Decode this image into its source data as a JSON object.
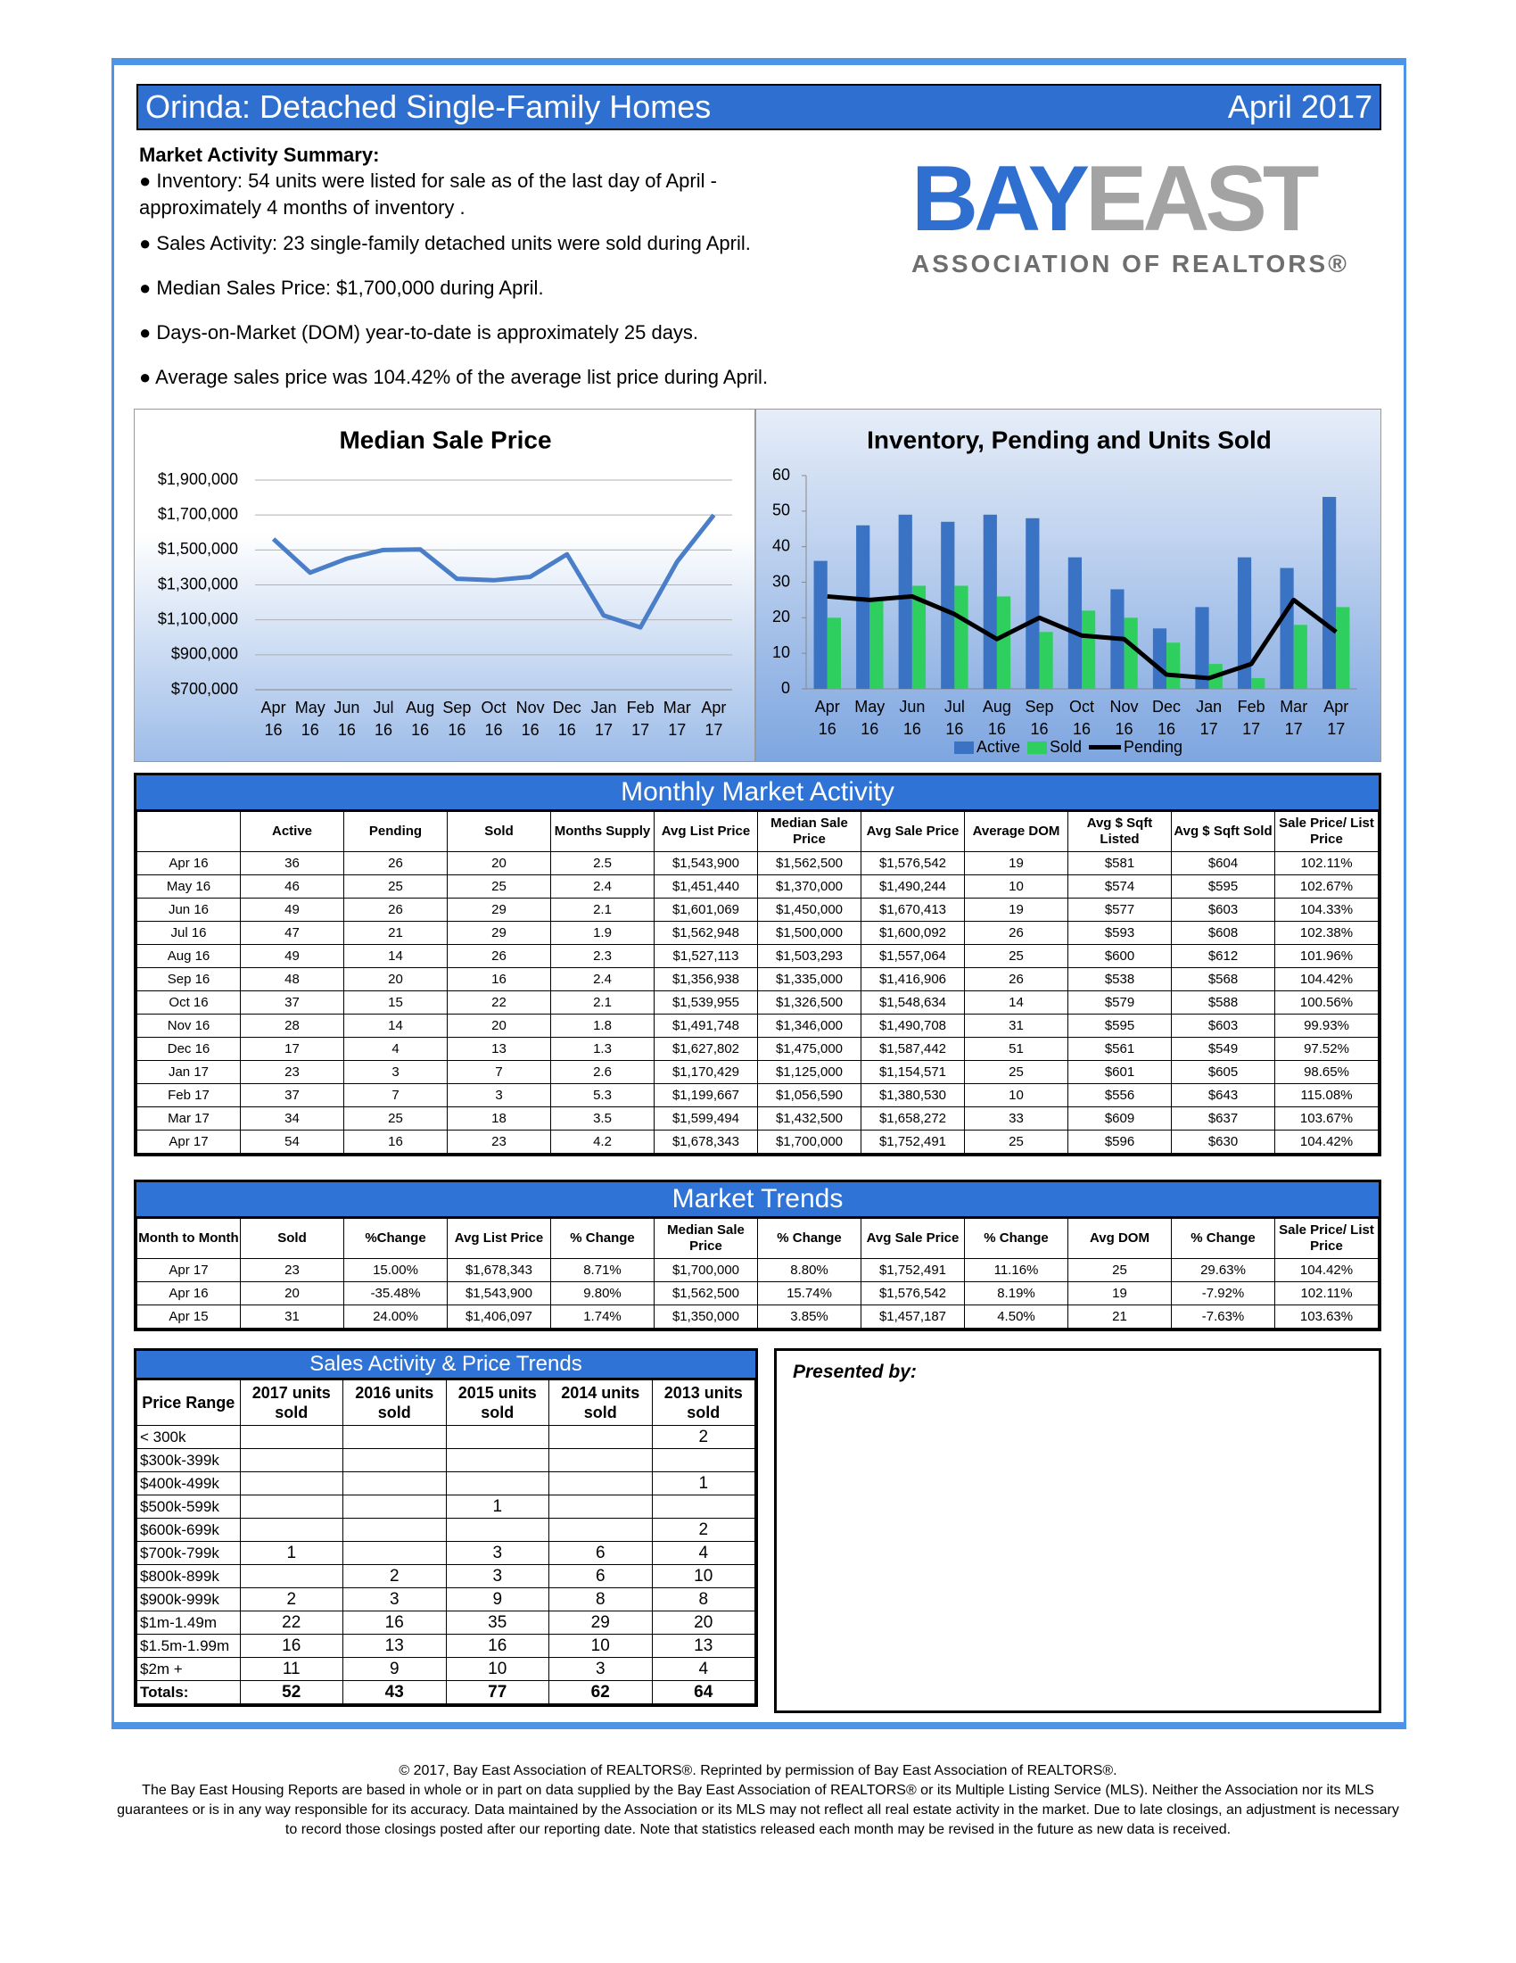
{
  "header": {
    "title": "Orinda: Detached Single-Family Homes",
    "date": "April 2017"
  },
  "summary": {
    "heading": "Market Activity Summary:",
    "items": [
      "● Inventory: 54 units were listed for sale as of the last day of April - approximately 4 months of inventory .",
      "● Sales Activity: 23 single-family detached units were sold during April.",
      "● Median Sales Price: $1,700,000 during April.",
      "● Days-on-Market (DOM) year-to-date is approximately 25 days.",
      "● Average sales price was 104.42% of the average list price during April."
    ]
  },
  "logo": {
    "words": [
      "BAY",
      "EAST"
    ],
    "subtitle": "ASSOCIATION OF REALTORS®"
  },
  "chart_data": [
    {
      "type": "line",
      "title": "Median Sale Price",
      "categories": [
        "Apr 16",
        "May 16",
        "Jun 16",
        "Jul 16",
        "Aug 16",
        "Sep 16",
        "Oct 16",
        "Nov 16",
        "Dec 16",
        "Jan 17",
        "Feb 17",
        "Mar 17",
        "Apr 17"
      ],
      "values": [
        1562500,
        1370000,
        1450000,
        1500000,
        1503293,
        1335000,
        1326500,
        1346000,
        1475000,
        1125000,
        1056590,
        1432500,
        1700000
      ],
      "color": "#4a7ec8",
      "ylim": [
        700000,
        1900000
      ],
      "yticks": [
        {
          "value": 700000,
          "label": "$700,000"
        },
        {
          "value": 900000,
          "label": "$900,000"
        },
        {
          "value": 1100000,
          "label": "$1,100,000"
        },
        {
          "value": 1300000,
          "label": "$1,300,000"
        },
        {
          "value": 1500000,
          "label": "$1,500,000"
        },
        {
          "value": 1700000,
          "label": "$1,700,000"
        },
        {
          "value": 1900000,
          "label": "$1,900,000"
        }
      ],
      "grid": true
    },
    {
      "type": "bar",
      "title": "Inventory, Pending and Units Sold",
      "categories": [
        "Apr 16",
        "May 16",
        "Jun 16",
        "Jul 16",
        "Aug 16",
        "Sep 16",
        "Oct 16",
        "Nov 16",
        "Dec 16",
        "Jan 17",
        "Feb 17",
        "Mar 17",
        "Apr 17"
      ],
      "series": [
        {
          "name": "Active",
          "color": "#3b73c4",
          "values": [
            36,
            46,
            49,
            47,
            49,
            48,
            37,
            28,
            17,
            23,
            37,
            34,
            54
          ]
        },
        {
          "name": "Sold",
          "color": "#2fcf5f",
          "values": [
            20,
            25,
            29,
            29,
            26,
            16,
            22,
            20,
            13,
            7,
            3,
            18,
            23
          ]
        },
        {
          "name": "Pending",
          "color": "#000000",
          "type": "line",
          "values": [
            26,
            25,
            26,
            21,
            14,
            20,
            15,
            14,
            4,
            3,
            7,
            25,
            16
          ]
        }
      ],
      "ylim": [
        0,
        60
      ],
      "yticks": [
        0,
        10,
        20,
        30,
        40,
        50,
        60
      ],
      "grid": false,
      "legend": "bottom"
    }
  ],
  "monthly_table": {
    "title": "Monthly Market Activity",
    "headers": [
      "Active",
      "Pending",
      "Sold",
      "Months Supply",
      "Avg List Price",
      "Median Sale Price",
      "Avg Sale Price",
      "Average DOM",
      "Avg $ Sqft Listed",
      "Avg $ Sqft Sold",
      "Sale Price/ List Price"
    ],
    "rows": [
      [
        "Apr 16",
        "36",
        "26",
        "20",
        "2.5",
        "$1,543,900",
        "$1,562,500",
        "$1,576,542",
        "19",
        "$581",
        "$604",
        "102.11%"
      ],
      [
        "May 16",
        "46",
        "25",
        "25",
        "2.4",
        "$1,451,440",
        "$1,370,000",
        "$1,490,244",
        "10",
        "$574",
        "$595",
        "102.67%"
      ],
      [
        "Jun 16",
        "49",
        "26",
        "29",
        "2.1",
        "$1,601,069",
        "$1,450,000",
        "$1,670,413",
        "19",
        "$577",
        "$603",
        "104.33%"
      ],
      [
        "Jul 16",
        "47",
        "21",
        "29",
        "1.9",
        "$1,562,948",
        "$1,500,000",
        "$1,600,092",
        "26",
        "$593",
        "$608",
        "102.38%"
      ],
      [
        "Aug 16",
        "49",
        "14",
        "26",
        "2.3",
        "$1,527,113",
        "$1,503,293",
        "$1,557,064",
        "25",
        "$600",
        "$612",
        "101.96%"
      ],
      [
        "Sep 16",
        "48",
        "20",
        "16",
        "2.4",
        "$1,356,938",
        "$1,335,000",
        "$1,416,906",
        "26",
        "$538",
        "$568",
        "104.42%"
      ],
      [
        "Oct 16",
        "37",
        "15",
        "22",
        "2.1",
        "$1,539,955",
        "$1,326,500",
        "$1,548,634",
        "14",
        "$579",
        "$588",
        "100.56%"
      ],
      [
        "Nov 16",
        "28",
        "14",
        "20",
        "1.8",
        "$1,491,748",
        "$1,346,000",
        "$1,490,708",
        "31",
        "$595",
        "$603",
        "99.93%"
      ],
      [
        "Dec 16",
        "17",
        "4",
        "13",
        "1.3",
        "$1,627,802",
        "$1,475,000",
        "$1,587,442",
        "51",
        "$561",
        "$549",
        "97.52%"
      ],
      [
        "Jan 17",
        "23",
        "3",
        "7",
        "2.6",
        "$1,170,429",
        "$1,125,000",
        "$1,154,571",
        "25",
        "$601",
        "$605",
        "98.65%"
      ],
      [
        "Feb 17",
        "37",
        "7",
        "3",
        "5.3",
        "$1,199,667",
        "$1,056,590",
        "$1,380,530",
        "10",
        "$556",
        "$643",
        "115.08%"
      ],
      [
        "Mar 17",
        "34",
        "25",
        "18",
        "3.5",
        "$1,599,494",
        "$1,432,500",
        "$1,658,272",
        "33",
        "$609",
        "$637",
        "103.67%"
      ],
      [
        "Apr 17",
        "54",
        "16",
        "23",
        "4.2",
        "$1,678,343",
        "$1,700,000",
        "$1,752,491",
        "25",
        "$596",
        "$630",
        "104.42%"
      ]
    ]
  },
  "trends_table": {
    "title": "Market Trends",
    "headers": [
      "Month to Month",
      "Sold",
      "%Change",
      "Avg List Price",
      "% Change",
      "Median Sale Price",
      "% Change",
      "Avg Sale Price",
      "% Change",
      "Avg DOM",
      "% Change",
      "Sale Price/ List Price"
    ],
    "rows": [
      [
        "Apr 17",
        "23",
        "15.00%",
        "$1,678,343",
        "8.71%",
        "$1,700,000",
        "8.80%",
        "$1,752,491",
        "11.16%",
        "25",
        "29.63%",
        "104.42%"
      ],
      [
        "Apr 16",
        "20",
        "-35.48%",
        "$1,543,900",
        "9.80%",
        "$1,562,500",
        "15.74%",
        "$1,576,542",
        "8.19%",
        "19",
        "-7.92%",
        "102.11%"
      ],
      [
        "Apr 15",
        "31",
        "24.00%",
        "$1,406,097",
        "1.74%",
        "$1,350,000",
        "3.85%",
        "$1,457,187",
        "4.50%",
        "21",
        "-7.63%",
        "103.63%"
      ]
    ]
  },
  "sales_table": {
    "title": "Sales Activity & Price Trends",
    "headers": [
      "Price Range",
      "2017 units sold",
      "2016 units sold",
      "2015 units sold",
      "2014 units sold",
      "2013 units sold"
    ],
    "rows": [
      [
        "< 300k",
        null,
        null,
        null,
        null,
        "2"
      ],
      [
        "$300k-399k",
        null,
        null,
        null,
        null,
        null
      ],
      [
        "$400k-499k",
        null,
        null,
        null,
        null,
        "1"
      ],
      [
        "$500k-599k",
        null,
        null,
        "1",
        null,
        null
      ],
      [
        "$600k-699k",
        null,
        null,
        null,
        null,
        "2"
      ],
      [
        "$700k-799k",
        "1",
        null,
        "3",
        "6",
        "4"
      ],
      [
        "$800k-899k",
        null,
        "2",
        "3",
        "6",
        "10"
      ],
      [
        "$900k-999k",
        "2",
        "3",
        "9",
        "8",
        "8"
      ],
      [
        "$1m-1.49m",
        "22",
        "16",
        "35",
        "29",
        "20"
      ],
      [
        "$1.5m-1.99m",
        "16",
        "13",
        "16",
        "10",
        "13"
      ],
      [
        "$2m +",
        "11",
        "9",
        "10",
        "3",
        "4"
      ],
      [
        "Totals:",
        "52",
        "43",
        "77",
        "62",
        "64"
      ]
    ]
  },
  "presented_by": "Presented by:",
  "footer": {
    "copyright": "© 2017, Bay East Association of REALTORS®.  Reprinted by permission of Bay East Association of REALTORS®.",
    "disclaimer": "The Bay East Housing Reports are based in whole or in part on data supplied by the Bay East Association of REALTORS® or its Multiple Listing Service (MLS). Neither the Association nor its MLS guarantees or is in any way responsible for its accuracy. Data maintained by the Association or its MLS may not reflect all real estate activity in the market. Due to late closings, an adjustment is necessary to record those closings posted after our reporting date. Note that statistics released each month may be revised in the future as new data is received."
  }
}
